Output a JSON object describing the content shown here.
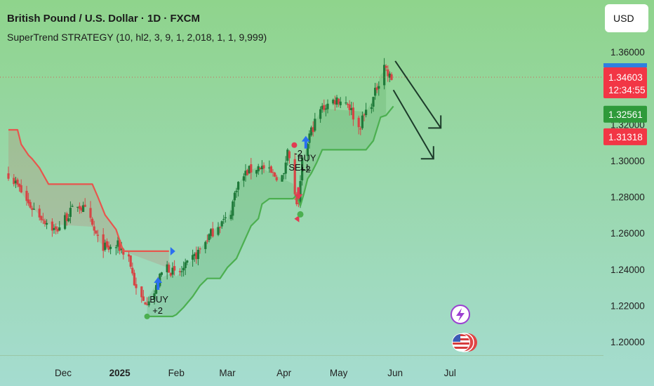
{
  "header": {
    "title": "British Pound / U.S. Dollar · 1D · FXCM",
    "indicator": "SuperTrend STRATEGY (10, hl2, 3, 9, 1, 2,018, 1, 1, 9,999)"
  },
  "currency_button": {
    "label": "USD"
  },
  "colors": {
    "bg_top": "#8fd48c",
    "bg_bottom": "#a5dcd0",
    "up": "#1f7a3a",
    "down": "#d64545",
    "supertrend_down": "#e8554d",
    "supertrend_up": "#4caf50",
    "buy_arrow": "#2a6ff0",
    "sell_arrow": "#e23a52",
    "price_tag": "#f23645",
    "trend_tag": "#2e9a3a",
    "forecast_arrow": "#1c3b2a"
  },
  "icons": {
    "flash": "lightning-icon",
    "flag": "us-flag-icon"
  },
  "chart_data": {
    "type": "candlestick",
    "title": "British Pound / U.S. Dollar · 1D · FXCM",
    "indicator": "SuperTrend STRATEGY (10, hl2, 3, 9, 1, 2,018, 1, 1, 9,999)",
    "y_axis": {
      "side": "right",
      "range": [
        1.19,
        1.371
      ],
      "ticks": [
        "1.36000",
        "1.34000",
        "1.32000",
        "1.30000",
        "1.28000",
        "1.26000",
        "1.24000",
        "1.22000",
        "1.20000"
      ]
    },
    "x_axis": {
      "ticks": [
        {
          "label": "Dec",
          "date": "2024-12-01",
          "bold": false
        },
        {
          "label": "2025",
          "date": "2025-01-01",
          "bold": true
        },
        {
          "label": "Feb",
          "date": "2025-02-01",
          "bold": false
        },
        {
          "label": "Mar",
          "date": "2025-03-01",
          "bold": false
        },
        {
          "label": "Apr",
          "date": "2025-04-01",
          "bold": false
        },
        {
          "label": "May",
          "date": "2025-05-01",
          "bold": false
        },
        {
          "label": "Jun",
          "date": "2025-06-01",
          "bold": false
        },
        {
          "label": "Jul",
          "date": "2025-07-01",
          "bold": false
        }
      ]
    },
    "price_path": [
      [
        "2024-11-01",
        1.293
      ],
      [
        "2024-11-06",
        1.286
      ],
      [
        "2024-11-12",
        1.276
      ],
      [
        "2024-11-20",
        1.268
      ],
      [
        "2024-11-27",
        1.261
      ],
      [
        "2024-12-02",
        1.268
      ],
      [
        "2024-12-09",
        1.276
      ],
      [
        "2024-12-14",
        1.271
      ],
      [
        "2024-12-20",
        1.256
      ],
      [
        "2024-12-25",
        1.251
      ],
      [
        "2024-12-31",
        1.253
      ],
      [
        "2025-01-06",
        1.247
      ],
      [
        "2025-01-10",
        1.228
      ],
      [
        "2025-01-14",
        1.222
      ],
      [
        "2025-01-20",
        1.227
      ],
      [
        "2025-01-26",
        1.243
      ],
      [
        "2025-02-01",
        1.236
      ],
      [
        "2025-02-07",
        1.242
      ],
      [
        "2025-02-12",
        1.248
      ],
      [
        "2025-02-18",
        1.257
      ],
      [
        "2025-02-24",
        1.265
      ],
      [
        "2025-03-02",
        1.268
      ],
      [
        "2025-03-06",
        1.286
      ],
      [
        "2025-03-12",
        1.294
      ],
      [
        "2025-03-19",
        1.297
      ],
      [
        "2025-03-26",
        1.292
      ],
      [
        "2025-04-01",
        1.291
      ],
      [
        "2025-04-03",
        1.309
      ],
      [
        "2025-04-07",
        1.28
      ],
      [
        "2025-04-09",
        1.274
      ],
      [
        "2025-04-11",
        1.299
      ],
      [
        "2025-04-15",
        1.314
      ],
      [
        "2025-04-21",
        1.328
      ],
      [
        "2025-04-25",
        1.331
      ],
      [
        "2025-04-30",
        1.334
      ],
      [
        "2025-05-06",
        1.332
      ],
      [
        "2025-05-12",
        1.318
      ],
      [
        "2025-05-16",
        1.327
      ],
      [
        "2025-05-20",
        1.334
      ],
      [
        "2025-05-26",
        1.354
      ],
      [
        "2025-05-28",
        1.347
      ],
      [
        "2025-05-30",
        1.345
      ]
    ],
    "supertrend_down": [
      [
        "2024-11-01",
        1.317
      ],
      [
        "2024-11-06",
        1.317
      ],
      [
        "2024-11-08",
        1.309
      ],
      [
        "2024-11-12",
        1.303
      ],
      [
        "2024-11-14",
        1.301
      ],
      [
        "2024-11-18",
        1.296
      ],
      [
        "2024-11-23",
        1.287
      ],
      [
        "2024-12-17",
        1.287
      ],
      [
        "2024-12-20",
        1.28
      ],
      [
        "2024-12-24",
        1.27
      ],
      [
        "2024-12-30",
        1.262
      ],
      [
        "2025-01-03",
        1.25
      ],
      [
        "2025-01-28",
        1.25
      ]
    ],
    "supertrend_up": [
      [
        "2025-01-16",
        1.214
      ],
      [
        "2025-01-23",
        1.214
      ],
      [
        "2025-01-30",
        1.214
      ],
      [
        "2025-02-01",
        1.215
      ],
      [
        "2025-02-05",
        1.219
      ],
      [
        "2025-02-10",
        1.225
      ],
      [
        "2025-02-14",
        1.231
      ],
      [
        "2025-02-18",
        1.235
      ],
      [
        "2025-02-25",
        1.235
      ],
      [
        "2025-03-01",
        1.241
      ],
      [
        "2025-03-06",
        1.246
      ],
      [
        "2025-03-10",
        1.255
      ],
      [
        "2025-03-14",
        1.264
      ],
      [
        "2025-03-18",
        1.268
      ],
      [
        "2025-03-20",
        1.276
      ],
      [
        "2025-03-24",
        1.279
      ],
      [
        "2025-04-06",
        1.279
      ],
      [
        "2025-04-08",
        1.281
      ],
      [
        "2025-04-10",
        1.275
      ],
      [
        "2025-04-12",
        1.282
      ],
      [
        "2025-04-14",
        1.29
      ],
      [
        "2025-04-16",
        1.293
      ],
      [
        "2025-04-19",
        1.299
      ],
      [
        "2025-04-22",
        1.306
      ],
      [
        "2025-05-16",
        1.306
      ],
      [
        "2025-05-20",
        1.311
      ],
      [
        "2025-05-24",
        1.324
      ],
      [
        "2025-05-27",
        1.325
      ],
      [
        "2025-05-31",
        1.33
      ]
    ],
    "signals": [
      {
        "type": "buy",
        "date": "2025-01-22",
        "label": "BUY",
        "qty": "+2",
        "price": 1.231
      },
      {
        "type": "sell",
        "date": "2025-04-09",
        "label": "SELL",
        "qty": "-2",
        "price": 1.283
      },
      {
        "type": "buy",
        "date": "2025-04-13",
        "label": "BUY",
        "qty": "+2",
        "price": 1.309
      }
    ],
    "price_labels": [
      {
        "label": "1.34603",
        "sub": "12:34:55",
        "value": 1.34603,
        "kind": "last"
      },
      {
        "label": "1.32561",
        "value": 1.32561,
        "kind": "supertrend"
      },
      {
        "label": "1.31318",
        "value": 1.31318,
        "kind": "level"
      }
    ],
    "forecast_arrows": [
      {
        "from": [
          "2025-06-01",
          1.355
        ],
        "to": [
          "2025-06-26",
          1.318
        ]
      },
      {
        "from": [
          "2025-05-31",
          1.339
        ],
        "to": [
          "2025-06-22",
          1.301
        ]
      }
    ]
  }
}
